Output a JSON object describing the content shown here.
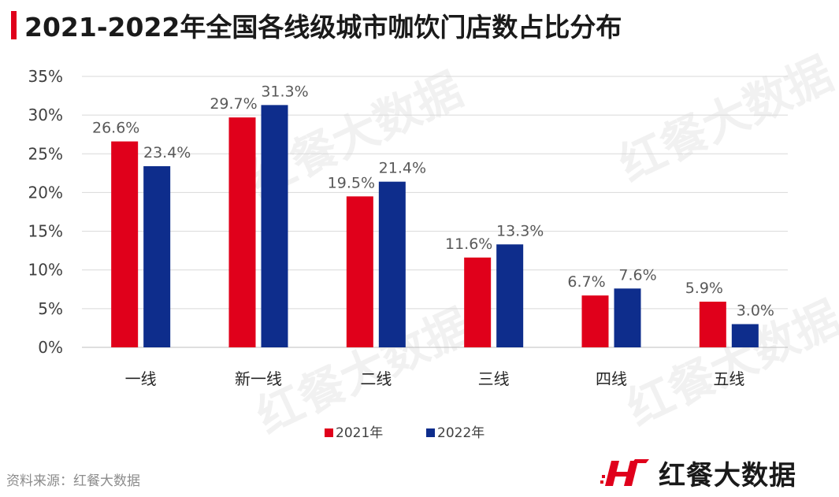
{
  "title": "2021-2022年全国各线级城市咖饮门店数占比分布",
  "source": "资料来源：红餐大数据",
  "brand": "红餐大数据",
  "colors": {
    "accent": "#e0001b",
    "series_2021": "#e0001b",
    "series_2022": "#0e2d8c",
    "grid": "#d9d9d9",
    "axis_text": "#404040",
    "label_text": "#595959"
  },
  "icons": [
    "brand-h-logo-icon"
  ],
  "chart_data": {
    "type": "bar",
    "categories": [
      "一线",
      "新一线",
      "二线",
      "三线",
      "四线",
      "五线"
    ],
    "series": [
      {
        "name": "2021年",
        "values": [
          26.6,
          29.7,
          19.5,
          11.6,
          6.7,
          5.9
        ]
      },
      {
        "name": "2022年",
        "values": [
          23.4,
          31.3,
          21.4,
          13.3,
          7.6,
          3.0
        ]
      }
    ],
    "yticks": [
      "0%",
      "5%",
      "10%",
      "15%",
      "20%",
      "25%",
      "30%",
      "35%"
    ],
    "value_labels": [
      [
        "26.6%",
        "29.7%",
        "19.5%",
        "11.6%",
        "6.7%",
        "5.9%"
      ],
      [
        "23.4%",
        "31.3%",
        "21.4%",
        "13.3%",
        "7.6%",
        "3.0%"
      ]
    ],
    "ylim": [
      0,
      35
    ],
    "grid": true,
    "legend": "bottom"
  }
}
